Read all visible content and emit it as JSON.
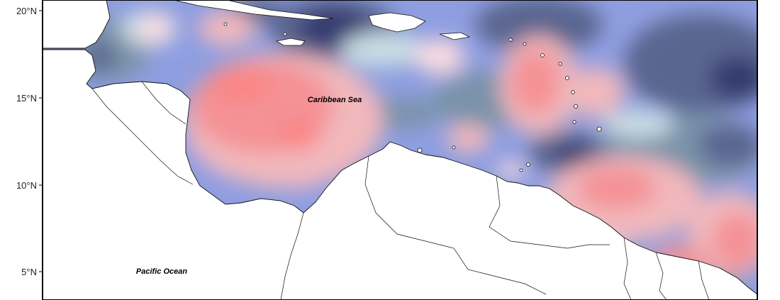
{
  "map": {
    "axis": {
      "latitude_ticks": [
        "20°N",
        "15°N",
        "10°N",
        "5°N"
      ]
    },
    "labels": {
      "caribbean": "Caribbean Sea",
      "pacific": "Pacific Ocean"
    },
    "colors": {
      "background": "#ffffff",
      "land": "#ffffff",
      "coastline": "#111111",
      "frame": "#000000",
      "palette": [
        "#353a6e",
        "#5a6690",
        "#7a93aa",
        "#8e9ee0",
        "#c9dde4",
        "#fadbe0",
        "#f1b8bc",
        "#f49296",
        "#fa8686"
      ]
    }
  }
}
